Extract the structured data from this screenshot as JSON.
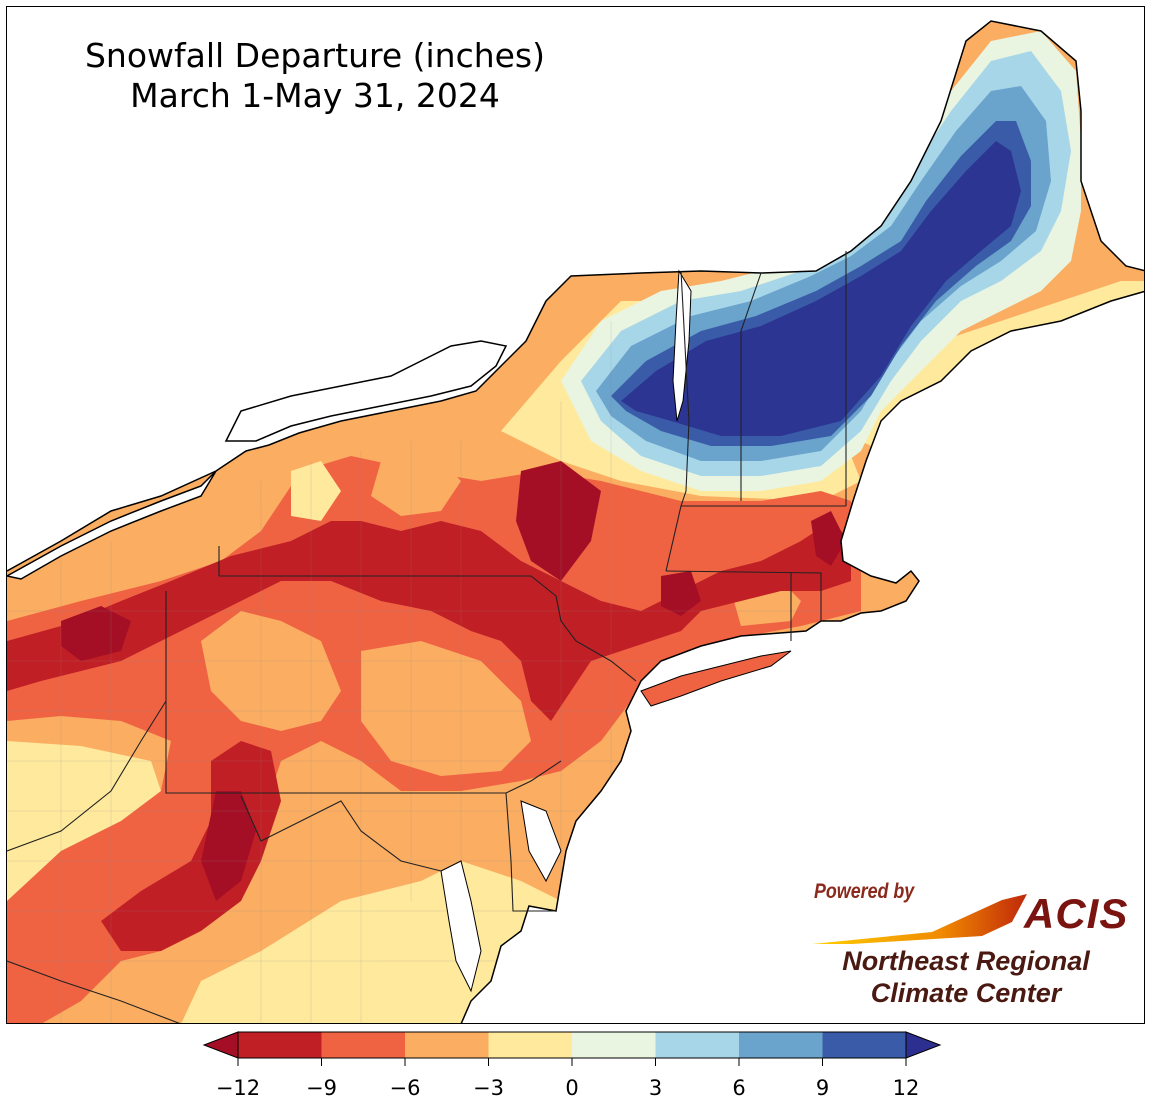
{
  "title": {
    "line1": "Snowfall Departure (inches)",
    "line2": "March 1-May 31, 2024"
  },
  "logo": {
    "powered_by": "Powered by",
    "acis": "ACIS",
    "org_line1": "Northeast Regional",
    "org_line2": "Climate Center"
  },
  "legend": {
    "ticks": [
      "−12",
      "−9",
      "−6",
      "−3",
      "0",
      "3",
      "6",
      "9",
      "12"
    ],
    "bins": [
      {
        "range": [
          -12,
          -9
        ],
        "color": "#c01f26"
      },
      {
        "range": [
          -9,
          -6
        ],
        "color": "#ef6343"
      },
      {
        "range": [
          -6,
          -3
        ],
        "color": "#fbad62"
      },
      {
        "range": [
          -3,
          0
        ],
        "color": "#fee99d"
      },
      {
        "range": [
          0,
          3
        ],
        "color": "#e9f4e1"
      },
      {
        "range": [
          3,
          6
        ],
        "color": "#a7d6e8"
      },
      {
        "range": [
          6,
          9
        ],
        "color": "#6aa3cc"
      },
      {
        "range": [
          9,
          12
        ],
        "color": "#3a5ca8"
      }
    ],
    "extend_low_color": "#a50f26",
    "extend_high_color": "#2c2f8f"
  },
  "map": {
    "region": "Northeast United States",
    "colors": {
      "below_12": "#a50f26",
      "minus_9_12": "#c01f26",
      "minus_6_9": "#ef6343",
      "minus_3_6": "#fbad62",
      "minus_0_3": "#fee99d",
      "plus_0_3": "#e9f4e1",
      "plus_3_6": "#a7d6e8",
      "plus_6_9": "#6aa3cc",
      "plus_9_12": "#3a5ca8",
      "above_12": "#2c3592"
    }
  }
}
